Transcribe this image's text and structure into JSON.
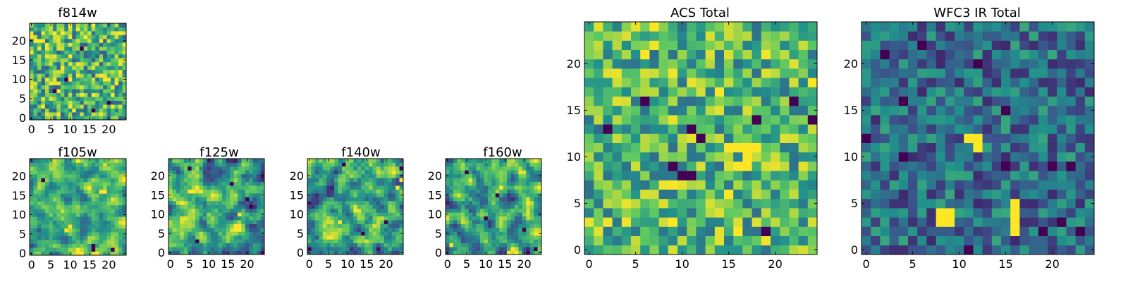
{
  "figure": {
    "colormap": "viridis",
    "colors": [
      "#440154",
      "#3b528b",
      "#21918c",
      "#5ec962",
      "#fde725"
    ]
  },
  "chart_data": [
    {
      "type": "heatmap",
      "title": "f814w",
      "size": 25,
      "xticks": [
        0,
        5,
        10,
        15,
        20
      ],
      "yticks": [
        0,
        5,
        10,
        15,
        20
      ],
      "xlim": [
        -0.5,
        24.5
      ],
      "ylim": [
        -0.5,
        24.5
      ],
      "pixel_stats": {
        "mean": 0.66,
        "spread": 0.22,
        "smoothing": 0,
        "seed": 11
      },
      "hot_pixels": [],
      "dark_pixels": [
        [
          9,
          10
        ],
        [
          16,
          2
        ],
        [
          20,
          4
        ],
        [
          6,
          7
        ],
        [
          13,
          18
        ]
      ]
    },
    {
      "type": "heatmap",
      "title": "ACS Total",
      "size": 25,
      "xticks": [
        0,
        5,
        10,
        15,
        20
      ],
      "yticks": [
        0,
        5,
        10,
        15,
        20
      ],
      "xlim": [
        -0.5,
        24.5
      ],
      "ylim": [
        -0.5,
        24.5
      ],
      "pixel_stats": {
        "mean": 0.68,
        "spread": 0.2,
        "smoothing": 0,
        "seed": 23
      },
      "hot_pixels": [
        [
          15,
          11
        ],
        [
          16,
          11
        ],
        [
          17,
          11
        ],
        [
          17,
          9
        ],
        [
          17,
          10
        ]
      ],
      "dark_pixels": [
        [
          6,
          16
        ],
        [
          2,
          13
        ],
        [
          11,
          13
        ],
        [
          12,
          12
        ],
        [
          9,
          9
        ],
        [
          10,
          8
        ],
        [
          18,
          14
        ],
        [
          19,
          2
        ],
        [
          22,
          16
        ],
        [
          24,
          14
        ],
        [
          11,
          8
        ]
      ]
    },
    {
      "type": "heatmap",
      "title": "WFC3 IR Total",
      "size": 25,
      "xticks": [
        0,
        5,
        10,
        15,
        20
      ],
      "yticks": [
        0,
        5,
        10,
        15,
        20
      ],
      "xlim": [
        -0.5,
        24.5
      ],
      "ylim": [
        -0.5,
        24.5
      ],
      "pixel_stats": {
        "mean": 0.36,
        "spread": 0.15,
        "smoothing": 0,
        "seed": 37
      },
      "hot_pixels": [
        [
          11,
          12
        ],
        [
          12,
          12
        ],
        [
          12,
          11
        ],
        [
          8,
          4
        ],
        [
          9,
          4
        ],
        [
          9,
          3
        ],
        [
          8,
          3
        ],
        [
          16,
          5
        ],
        [
          16,
          4
        ],
        [
          16,
          3
        ],
        [
          16,
          2
        ]
      ],
      "dark_pixels": [
        [
          2,
          21
        ],
        [
          6,
          22
        ],
        [
          12,
          20
        ],
        [
          4,
          16
        ],
        [
          15,
          15
        ],
        [
          15,
          9
        ],
        [
          20,
          9
        ],
        [
          22,
          9
        ],
        [
          4,
          10
        ],
        [
          0,
          12
        ],
        [
          23,
          2
        ],
        [
          21,
          3
        ],
        [
          19,
          2
        ],
        [
          11,
          0
        ],
        [
          2,
          21
        ]
      ]
    },
    {
      "type": "heatmap",
      "title": "f105w",
      "size": 25,
      "xticks": [
        0,
        5,
        10,
        15,
        20
      ],
      "yticks": [
        0,
        5,
        10,
        15,
        20
      ],
      "xlim": [
        -0.5,
        24.5
      ],
      "ylim": [
        -0.5,
        24.5
      ],
      "pixel_stats": {
        "mean": 0.64,
        "spread": 0.22,
        "smoothing": 1,
        "seed": 41
      },
      "hot_pixels": [
        [
          9,
          6
        ],
        [
          10,
          7
        ],
        [
          18,
          16
        ],
        [
          19,
          16
        ]
      ],
      "dark_pixels": [
        [
          16,
          1
        ],
        [
          16,
          2
        ],
        [
          3,
          19
        ],
        [
          21,
          1
        ]
      ]
    },
    {
      "type": "heatmap",
      "title": "f125w",
      "size": 25,
      "xticks": [
        0,
        5,
        10,
        15,
        20
      ],
      "yticks": [
        0,
        5,
        10,
        15,
        20
      ],
      "xlim": [
        -0.5,
        24.5
      ],
      "ylim": [
        -0.5,
        24.5
      ],
      "pixel_stats": {
        "mean": 0.6,
        "spread": 0.24,
        "smoothing": 1,
        "seed": 53
      },
      "hot_pixels": [
        [
          5,
          16
        ],
        [
          6,
          16
        ],
        [
          18,
          10
        ]
      ],
      "dark_pixels": [
        [
          20,
          14
        ],
        [
          21,
          12
        ],
        [
          7,
          3
        ],
        [
          16,
          18
        ],
        [
          5,
          22
        ]
      ]
    },
    {
      "type": "heatmap",
      "title": "f140w",
      "size": 25,
      "xticks": [
        0,
        5,
        10,
        15,
        20
      ],
      "yticks": [
        0,
        5,
        10,
        15,
        20
      ],
      "xlim": [
        -0.5,
        24.5
      ],
      "ylim": [
        -0.5,
        24.5
      ],
      "pixel_stats": {
        "mean": 0.6,
        "spread": 0.25,
        "smoothing": 1,
        "seed": 67
      },
      "hot_pixels": [
        [
          24,
          19
        ],
        [
          23,
          17
        ],
        [
          8,
          8
        ]
      ],
      "dark_pixels": [
        [
          0,
          1
        ],
        [
          24,
          22
        ],
        [
          9,
          23
        ],
        [
          20,
          8
        ],
        [
          14,
          5
        ]
      ]
    },
    {
      "type": "heatmap",
      "title": "f160w",
      "size": 25,
      "xticks": [
        0,
        5,
        10,
        15,
        20
      ],
      "yticks": [
        0,
        5,
        10,
        15,
        20
      ],
      "xlim": [
        -0.5,
        24.5
      ],
      "ylim": [
        -0.5,
        24.5
      ],
      "pixel_stats": {
        "mean": 0.6,
        "spread": 0.25,
        "smoothing": 1,
        "seed": 79
      },
      "hot_pixels": [
        [
          1,
          2
        ],
        [
          16,
          0
        ],
        [
          17,
          1
        ],
        [
          14,
          17
        ]
      ],
      "dark_pixels": [
        [
          13,
          15
        ],
        [
          20,
          6
        ],
        [
          5,
          21
        ],
        [
          23,
          1
        ],
        [
          10,
          9
        ]
      ]
    }
  ]
}
